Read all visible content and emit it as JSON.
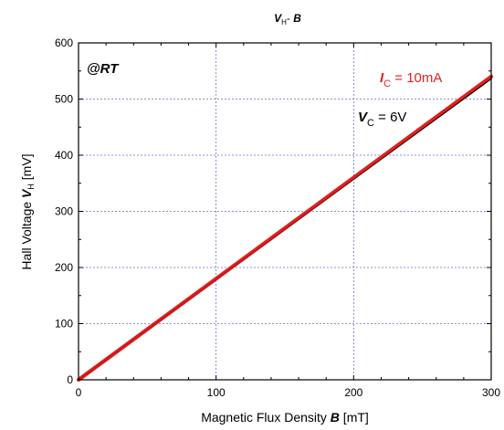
{
  "chart_data": {
    "type": "line",
    "title": {
      "var": "V",
      "sub": "H",
      "sep": "- ",
      "var2": "B"
    },
    "xlabel": {
      "pre": "Magnetic Flux Density ",
      "var": "B",
      "post": " [mT]"
    },
    "ylabel": {
      "pre": "Hall Voltage ",
      "var": "V",
      "sub": "H",
      "post": " [mV]"
    },
    "xlim": [
      0,
      300
    ],
    "ylim": [
      0,
      600
    ],
    "x_ticks": [
      0,
      100,
      200,
      300
    ],
    "y_ticks": [
      0,
      100,
      200,
      300,
      400,
      500,
      600
    ],
    "grid": true,
    "series": [
      {
        "color": "#e02020",
        "x": [
          0,
          300
        ],
        "y": [
          0,
          540
        ]
      },
      {
        "color": "#000000",
        "x": [
          0,
          300
        ],
        "y": [
          0,
          536
        ]
      }
    ],
    "annotations": {
      "rt": "@RT",
      "ic": {
        "var": "I",
        "sub": "C",
        "value": " = 10mA",
        "color": "#e02020"
      },
      "vc": {
        "var": "V",
        "sub": "C",
        "value": " = 6V",
        "color": "#000000"
      }
    }
  }
}
